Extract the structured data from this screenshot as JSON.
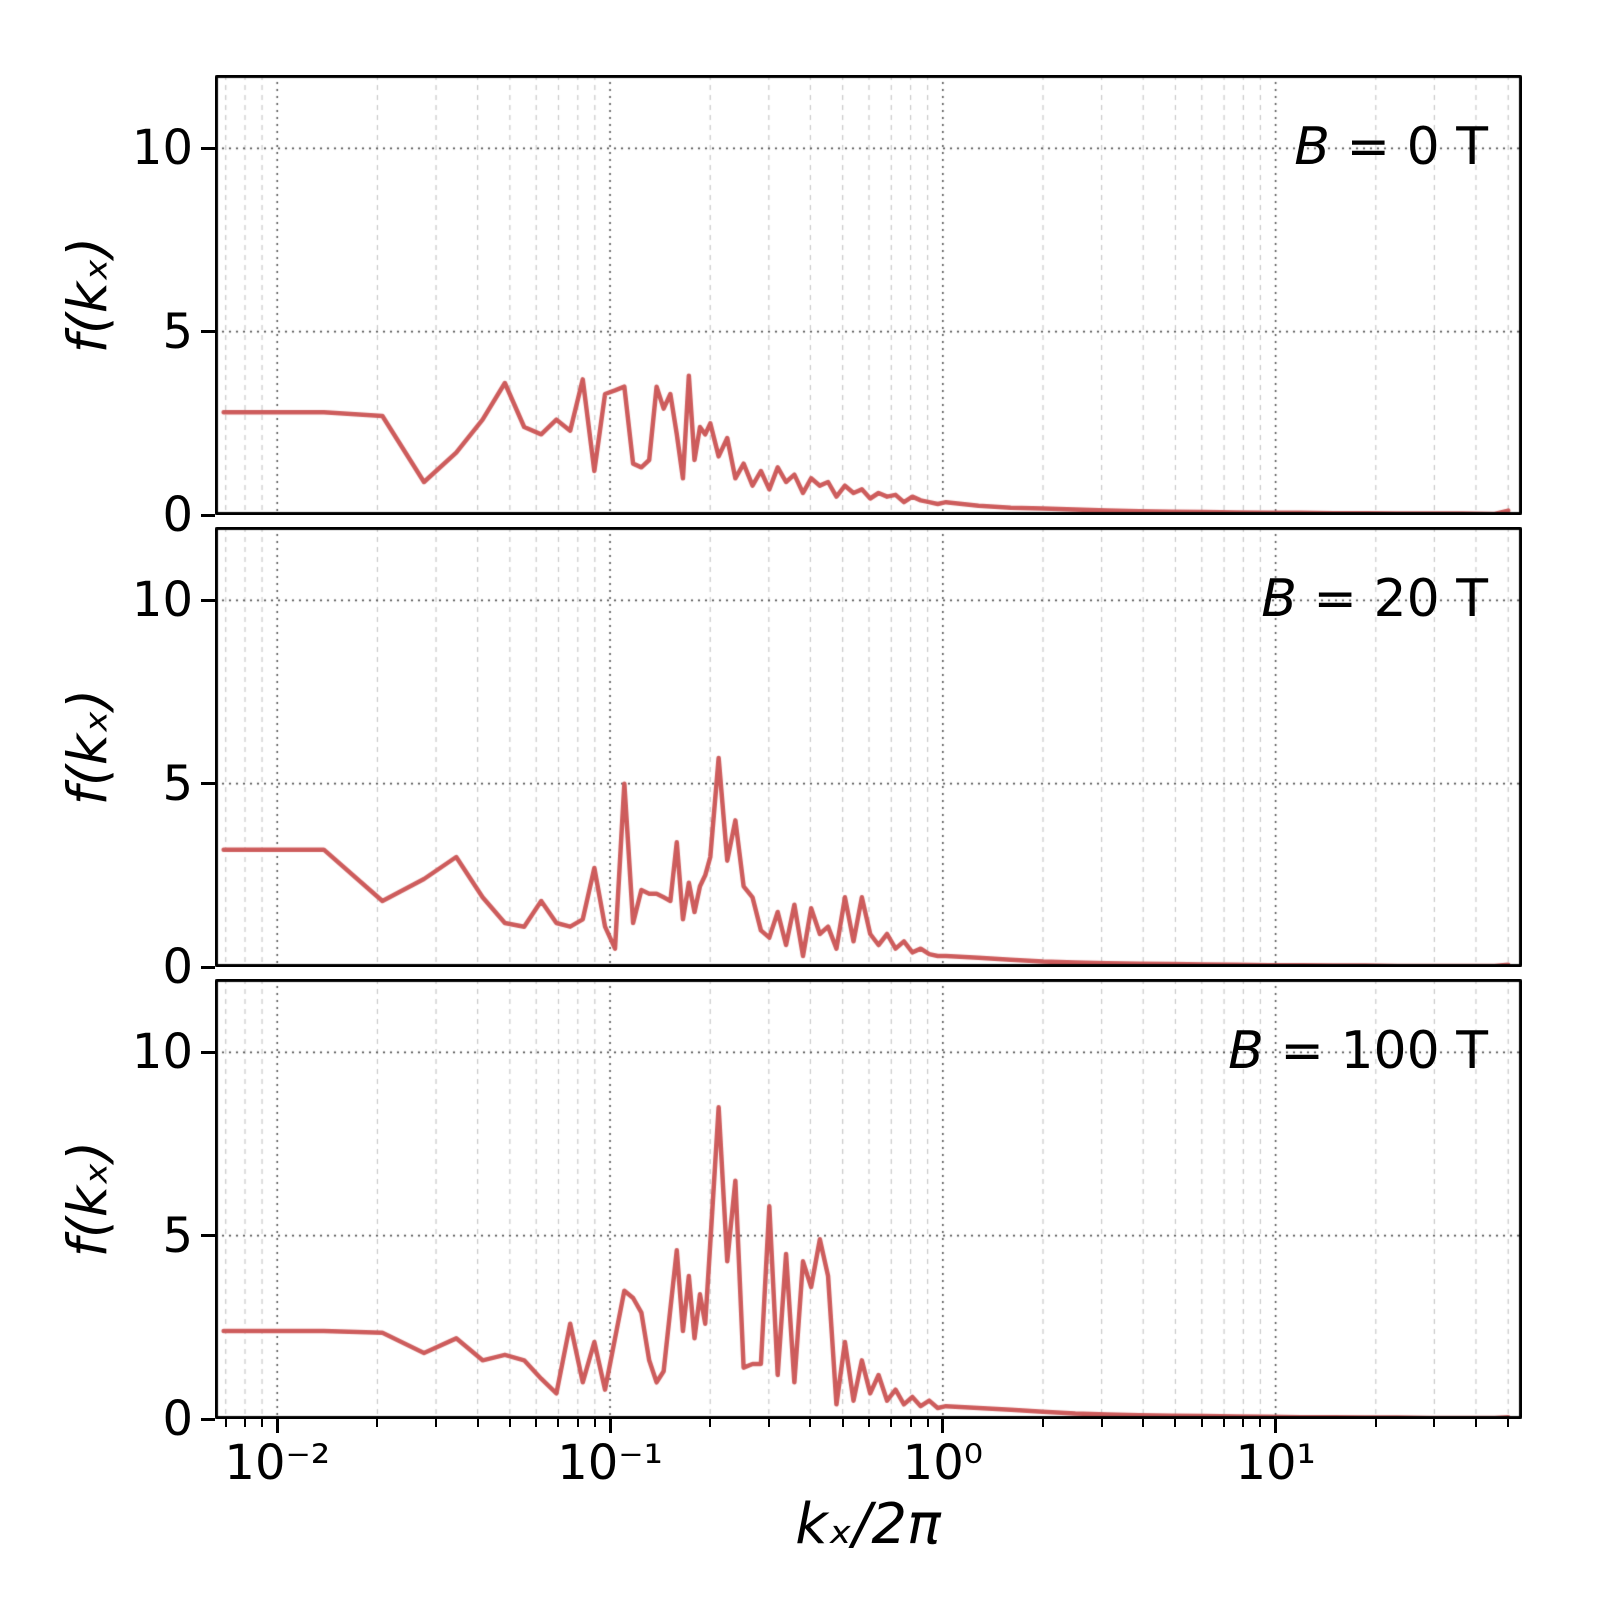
{
  "colors": {
    "line": "#cd5c5c",
    "grid_major": "#555555",
    "grid_minor": "#c9c9c9",
    "spine": "#000000",
    "background": "#ffffff"
  },
  "axes": {
    "x_ticks": [
      {
        "v": 0.01,
        "label": "10⁻²"
      },
      {
        "v": 0.1,
        "label": "10⁻¹"
      },
      {
        "v": 1,
        "label": "10⁰"
      },
      {
        "v": 10,
        "label": "10¹"
      }
    ],
    "y_ticks": [
      {
        "v": 0,
        "label": "0"
      },
      {
        "v": 5,
        "label": "5"
      },
      {
        "v": 10,
        "label": "10"
      }
    ]
  },
  "chart_data": {
    "type": "line",
    "xscale": "log",
    "xlabel": "kₓ/2π",
    "ylabel": "f(kₓ)",
    "xlim": [
      0.0065,
      55
    ],
    "ylim": [
      0,
      12
    ],
    "legend_position": "none",
    "layout": "three stacked subplots sharing log x-axis, dotted major grid and dashed minor grid",
    "x": [
      0.0069,
      0.0138,
      0.0207,
      0.0276,
      0.0345,
      0.0414,
      0.0483,
      0.0552,
      0.0621,
      0.069,
      0.0759,
      0.0828,
      0.0897,
      0.0966,
      0.1035,
      0.1104,
      0.1173,
      0.1242,
      0.1311,
      0.138,
      0.1449,
      0.1518,
      0.1587,
      0.1656,
      0.1725,
      0.1794,
      0.1863,
      0.1932,
      0.2001,
      0.212,
      0.225,
      0.238,
      0.252,
      0.268,
      0.284,
      0.301,
      0.319,
      0.338,
      0.358,
      0.38,
      0.402,
      0.427,
      0.452,
      0.479,
      0.508,
      0.539,
      0.571,
      0.605,
      0.641,
      0.68,
      0.721,
      0.764,
      0.81,
      0.858,
      0.91,
      0.965,
      1.022,
      1.28,
      1.6,
      2.0,
      2.5,
      3.12,
      3.9,
      4.88,
      6.1,
      7.62,
      9.53,
      11.9,
      14.9,
      18.6,
      23.3,
      29.1,
      36.4,
      45.5,
      50.0
    ],
    "series": [
      {
        "name": "B = 0 T",
        "values": [
          2.8,
          2.8,
          2.7,
          0.9,
          1.7,
          2.6,
          3.6,
          2.4,
          2.2,
          2.6,
          2.3,
          3.7,
          1.2,
          3.3,
          3.4,
          3.5,
          1.4,
          1.3,
          1.5,
          3.5,
          2.9,
          3.3,
          2.2,
          1.0,
          3.8,
          1.5,
          2.4,
          2.2,
          2.5,
          1.6,
          2.1,
          1.0,
          1.4,
          0.8,
          1.2,
          0.7,
          1.3,
          0.9,
          1.1,
          0.6,
          1.0,
          0.8,
          0.9,
          0.5,
          0.8,
          0.6,
          0.7,
          0.45,
          0.6,
          0.5,
          0.55,
          0.35,
          0.5,
          0.4,
          0.35,
          0.3,
          0.35,
          0.25,
          0.2,
          0.18,
          0.15,
          0.12,
          0.1,
          0.09,
          0.08,
          0.07,
          0.06,
          0.06,
          0.05,
          0.05,
          0.04,
          0.04,
          0.04,
          0.03,
          0.12
        ]
      },
      {
        "name": "B = 20 T",
        "values": [
          3.2,
          3.2,
          1.8,
          2.4,
          3.0,
          1.9,
          1.2,
          1.1,
          1.8,
          1.2,
          1.1,
          1.3,
          2.7,
          1.1,
          0.5,
          5.0,
          1.2,
          2.1,
          2.0,
          2.0,
          1.9,
          1.8,
          3.4,
          1.3,
          2.3,
          1.5,
          2.2,
          2.5,
          3.0,
          5.7,
          2.9,
          4.0,
          2.2,
          1.9,
          1.0,
          0.8,
          1.5,
          0.6,
          1.7,
          0.3,
          1.6,
          0.9,
          1.1,
          0.5,
          1.9,
          0.7,
          1.9,
          0.9,
          0.6,
          0.9,
          0.5,
          0.7,
          0.4,
          0.5,
          0.35,
          0.3,
          0.3,
          0.25,
          0.2,
          0.15,
          0.12,
          0.1,
          0.09,
          0.08,
          0.07,
          0.06,
          0.05,
          0.05,
          0.04,
          0.04,
          0.03,
          0.03,
          0.03,
          0.03,
          0.06
        ]
      },
      {
        "name": "B = 100 T",
        "values": [
          2.4,
          2.4,
          2.35,
          1.8,
          2.2,
          1.6,
          1.75,
          1.6,
          1.1,
          0.7,
          2.6,
          1.0,
          2.1,
          0.8,
          2.2,
          3.5,
          3.3,
          2.9,
          1.6,
          1.0,
          1.3,
          3.0,
          4.6,
          2.4,
          3.9,
          2.2,
          3.4,
          2.6,
          4.8,
          8.5,
          4.3,
          6.5,
          1.4,
          1.5,
          1.5,
          5.8,
          1.2,
          4.5,
          1.0,
          4.3,
          3.6,
          4.9,
          3.9,
          0.4,
          2.1,
          0.5,
          1.6,
          0.7,
          1.2,
          0.5,
          0.8,
          0.4,
          0.6,
          0.35,
          0.5,
          0.3,
          0.35,
          0.3,
          0.25,
          0.2,
          0.15,
          0.12,
          0.1,
          0.09,
          0.08,
          0.07,
          0.06,
          0.05,
          0.05,
          0.04,
          0.04,
          0.03,
          0.03,
          0.03,
          0.05
        ]
      }
    ]
  }
}
